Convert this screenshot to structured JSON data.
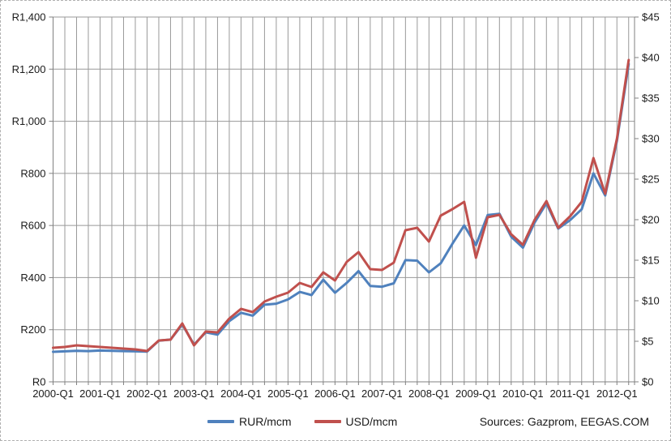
{
  "source_note": "Sources: Gazprom, EEGAS.COM",
  "chart_data": {
    "type": "line",
    "title": "",
    "grid": true,
    "legend_position": "bottom",
    "categories": [
      "2000-Q1",
      "2000-Q2",
      "2000-Q3",
      "2000-Q4",
      "2001-Q1",
      "2001-Q2",
      "2001-Q3",
      "2001-Q4",
      "2002-Q1",
      "2002-Q2",
      "2002-Q3",
      "2002-Q4",
      "2003-Q1",
      "2003-Q2",
      "2003-Q3",
      "2003-Q4",
      "2004-Q1",
      "2004-Q2",
      "2004-Q3",
      "2004-Q4",
      "2005-Q1",
      "2005-Q2",
      "2005-Q3",
      "2005-Q4",
      "2006-Q1",
      "2006-Q2",
      "2006-Q3",
      "2006-Q4",
      "2007-Q1",
      "2007-Q2",
      "2007-Q3",
      "2007-Q4",
      "2008-Q1",
      "2008-Q2",
      "2008-Q3",
      "2008-Q4",
      "2009-Q1",
      "2009-Q2",
      "2009-Q3",
      "2009-Q4",
      "2010-Q1",
      "2010-Q2",
      "2010-Q3",
      "2010-Q4",
      "2011-Q1",
      "2011-Q2",
      "2011-Q3",
      "2011-Q4",
      "2012-Q1",
      "2012-Q2"
    ],
    "x_tick_labels": [
      "2000-Q1",
      "2001-Q1",
      "2002-Q1",
      "2003-Q1",
      "2004-Q1",
      "2005-Q1",
      "2006-Q1",
      "2007-Q1",
      "2008-Q1",
      "2009-Q1",
      "2010-Q1",
      "2011-Q1",
      "2012-Q1"
    ],
    "series": [
      {
        "name": "RUR/mcm",
        "axis": "left",
        "color": "#4F81BD",
        "values": [
          115,
          117,
          119,
          118,
          120,
          119,
          118,
          117,
          116,
          158,
          162,
          220,
          143,
          190,
          181,
          233,
          265,
          254,
          296,
          300,
          316,
          345,
          333,
          392,
          342,
          380,
          425,
          368,
          365,
          378,
          467,
          465,
          420,
          455,
          530,
          600,
          525,
          640,
          645,
          557,
          515,
          612,
          685,
          588,
          620,
          662,
          800,
          715,
          925,
          1220
        ]
      },
      {
        "name": "USD/mcm",
        "axis": "right",
        "color": "#C0504D",
        "values": [
          4.2,
          4.3,
          4.5,
          4.4,
          4.3,
          4.2,
          4.1,
          4.0,
          3.8,
          5.1,
          5.2,
          7.2,
          4.5,
          6.2,
          6.1,
          7.8,
          9.0,
          8.6,
          9.9,
          10.5,
          11.0,
          12.2,
          11.7,
          13.5,
          12.5,
          14.8,
          16.0,
          13.9,
          13.8,
          14.7,
          18.7,
          19.0,
          17.3,
          20.5,
          21.3,
          22.2,
          15.3,
          20.3,
          20.6,
          18.2,
          16.9,
          20.0,
          22.3,
          19.0,
          20.4,
          22.2,
          27.6,
          23.2,
          30.0,
          39.7
        ]
      }
    ],
    "left_axis": {
      "min": 0,
      "max": 1400,
      "step": 200,
      "tick_labels": [
        "R0",
        "R200",
        "R400",
        "R600",
        "R800",
        "R1,000",
        "R1,200",
        "R1,400"
      ]
    },
    "right_axis": {
      "min": 0,
      "max": 45,
      "step": 5,
      "tick_labels": [
        "$0",
        "$5",
        "$10",
        "$15",
        "$20",
        "$25",
        "$30",
        "$35",
        "$40",
        "$45"
      ]
    }
  },
  "legend": {
    "rur_label": "RUR/mcm",
    "usd_label": "USD/mcm"
  },
  "colors": {
    "rur_line": "#4F81BD",
    "usd_line": "#C0504D",
    "gridline": "#999999",
    "axis_line": "#808080"
  }
}
